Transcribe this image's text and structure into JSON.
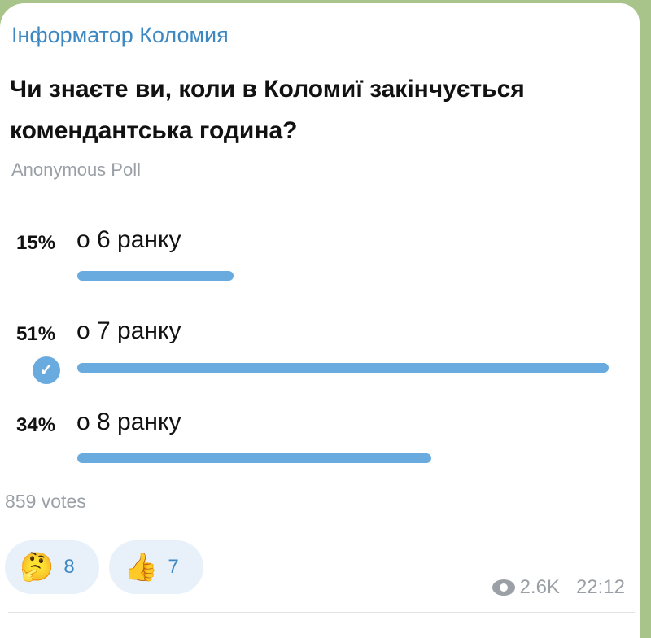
{
  "channel": "Інформатор Коломия",
  "question": "Чи знаєте ви, коли в Коломиї закінчується комендантська година?",
  "poll_type": "Anonymous Poll",
  "options": [
    {
      "percent": "15%",
      "label": "о 6 ранку",
      "value": 15,
      "selected": false
    },
    {
      "percent": "51%",
      "label": "о 7 ранку",
      "value": 51,
      "selected": true
    },
    {
      "percent": "34%",
      "label": "о 8 ранку",
      "value": 34,
      "selected": false
    }
  ],
  "votes": "859 votes",
  "reactions": [
    {
      "icon": "thinking-face-icon",
      "emoji": "🤔",
      "count": "8"
    },
    {
      "icon": "thumbs-up-icon",
      "emoji": "👍",
      "count": "7"
    }
  ],
  "views": "2.6K",
  "time": "22:12",
  "colors": {
    "accent": "#3d88c2",
    "bar": "#6aabdf",
    "background": "#a9c48a"
  }
}
